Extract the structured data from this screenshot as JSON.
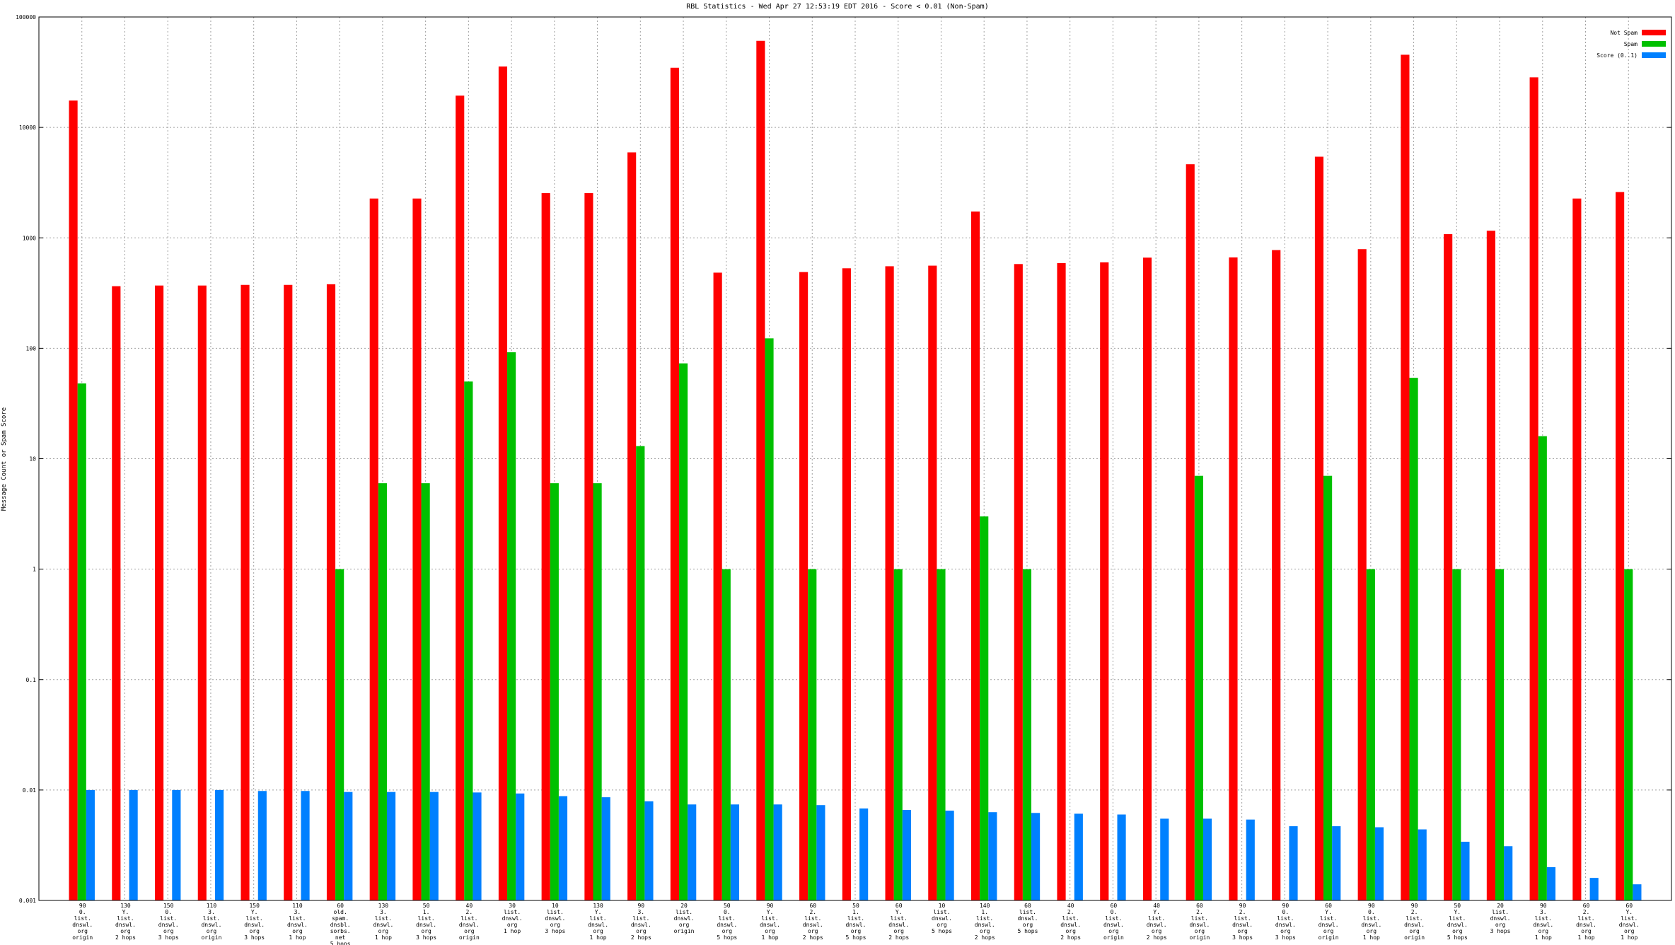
{
  "chart_data": {
    "type": "bar",
    "title": "RBL Statistics - Wed Apr 27 12:53:19 EDT 2016 - Score < 0.01 (Non-Spam)",
    "y_label": "Message Count or Spam Score",
    "log_scale": true,
    "grid": true,
    "legend_position": "top-right",
    "categories": [
      "90\n0.\nlist.\ndnswl.\norg\norigin",
      "130\nY.\nlist.\ndnswl.\norg\n2 hops",
      "150\n0.\nlist.\ndnswl.\norg\n3 hops",
      "110\n3.\nlist.\ndnswl.\norg\norigin",
      "150\nY.\nlist.\ndnswl.\norg\n3 hops",
      "110\n3.\nlist.\ndnswl.\norg\n1 hop",
      "60\nold.\nspam.\ndnsbl.\nsorbs.\nnet\n5 hops",
      "130\n3.\nlist.\ndnswl.\norg\n1 hop",
      "50\n1.\nlist.\ndnswl.\norg\n3 hops",
      "40\n2.\nlist.\ndnswl.\norg\norigin",
      "30\nlist.\ndnswl.\norg\n1 hop",
      "10\nlist.\ndnswl.\norg\n3 hops",
      "130\nY.\nlist.\ndnswl.\norg\n1 hop",
      "90\n3.\nlist.\ndnswl.\norg\n2 hops",
      "20\nlist.\ndnswl.\norg\norigin",
      "50\n0.\nlist.\ndnswl.\norg\n5 hops",
      "90\nY.\nlist.\ndnswl.\norg\n1 hop",
      "60\n2.\nlist.\ndnswl.\norg\n2 hops",
      "50\n1.\nlist.\ndnswl.\norg\n5 hops",
      "60\nY.\nlist.\ndnswl.\norg\n2 hops",
      "10\nlist.\ndnswl.\norg\n5 hops",
      "140\n1.\nlist.\ndnswl.\norg\n2 hops",
      "60\nlist.\ndnswl.\norg\n5 hops",
      "40\n2.\nlist.\ndnswl.\norg\n2 hops",
      "60\n0.\nlist.\ndnswl.\norg\norigin",
      "40\nY.\nlist.\ndnswl.\norg\n2 hops",
      "60\n2.\nlist.\ndnswl.\norg\norigin",
      "90\n2.\nlist.\ndnswl.\norg\n3 hops",
      "90\n0.\nlist.\ndnswl.\norg\n3 hops",
      "60\nY.\nlist.\ndnswl.\norg\norigin",
      "90\n0.\nlist.\ndnswl.\norg\n1 hop",
      "90\n2.\nlist.\ndnswl.\norg\norigin",
      "50\nY.\nlist.\ndnswl.\norg\n5 hops",
      "20\nlist.\ndnswl.\norg\n3 hops",
      "90\n3.\nlist.\ndnswl.\norg\n1 hop",
      "60\n2.\nlist.\ndnswl.\norg\n1 hop",
      "60\nY.\nlist.\ndnswl.\norg\n1 hop"
    ],
    "series": [
      {
        "name": "Not Spam",
        "color": "#ff0000",
        "values": [
          17500,
          365,
          370,
          370,
          375,
          375,
          380,
          2270,
          2270,
          19400,
          35600,
          2540,
          2540,
          5940,
          34700,
          484,
          60800,
          490,
          530,
          553,
          560,
          1730,
          579,
          590,
          600,
          662,
          4640,
          665,
          775,
          5430,
          790,
          45500,
          1080,
          1160,
          28400,
          2270,
          2600
        ]
      },
      {
        "name": "Spam",
        "color": "#00c000",
        "values": [
          48,
          null,
          null,
          null,
          null,
          null,
          1,
          6,
          6,
          50,
          92,
          6,
          6,
          13,
          73,
          1,
          123,
          1,
          null,
          1,
          1,
          3,
          1,
          null,
          null,
          null,
          7,
          null,
          null,
          7,
          1,
          54,
          1,
          1,
          16,
          null,
          1
        ]
      },
      {
        "name": "Score (0..1)",
        "color": "#0080ff",
        "values": [
          0.01,
          0.01,
          0.01,
          0.01,
          0.0098,
          0.0098,
          0.0096,
          0.0096,
          0.0096,
          0.0095,
          0.0093,
          0.0088,
          0.0086,
          0.0079,
          0.0074,
          0.0074,
          0.0074,
          0.0073,
          0.0068,
          0.0066,
          0.0065,
          0.0063,
          0.0062,
          0.0061,
          0.006,
          0.0055,
          0.0055,
          0.0054,
          0.0047,
          0.0047,
          0.0046,
          0.0044,
          0.0034,
          0.0031,
          0.002,
          0.0016,
          0.0014
        ]
      }
    ],
    "ylim": [
      0.001,
      100000
    ],
    "yticks": [
      0.001,
      0.01,
      0.1,
      1,
      10,
      100,
      1000,
      10000,
      100000
    ]
  }
}
